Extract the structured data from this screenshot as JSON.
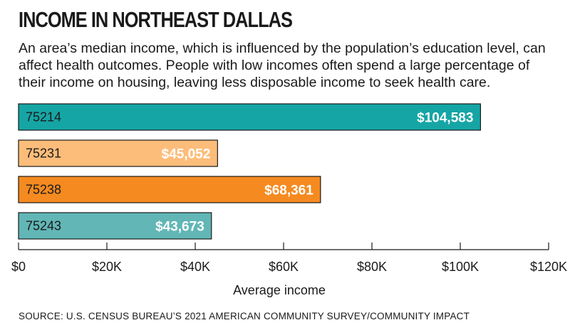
{
  "title": "INCOME IN NORTHEAST DALLAS",
  "subtitle": "An area’s median income, which is influenced by the population’s education level, can affect health outcomes. People with low incomes often spend a large percentage of their income on housing, leaving less disposable income to seek health care.",
  "source": "SOURCE: U.S. CENSUS BUREAU’S 2021 AMERICAN COMMUNITY SURVEY/COMMUNITY IMPACT",
  "chart_data": {
    "type": "bar",
    "orientation": "horizontal",
    "categories": [
      "75214",
      "75231",
      "75238",
      "75243"
    ],
    "values": [
      104583,
      45052,
      68361,
      43673
    ],
    "value_labels": [
      "$104,583",
      "$45,052",
      "$68,361",
      "$43,673"
    ],
    "colors": [
      "#16a5a5",
      "#fdbd7a",
      "#f58a20",
      "#62b6b6"
    ],
    "xlabel": "Average income",
    "xlim": [
      0,
      120000
    ],
    "xticks": [
      0,
      20000,
      40000,
      60000,
      80000,
      100000,
      120000
    ],
    "xtick_labels": [
      "$0",
      "$20K",
      "$40K",
      "$60K",
      "$80K",
      "$100K",
      "$120K"
    ],
    "grid": false
  }
}
